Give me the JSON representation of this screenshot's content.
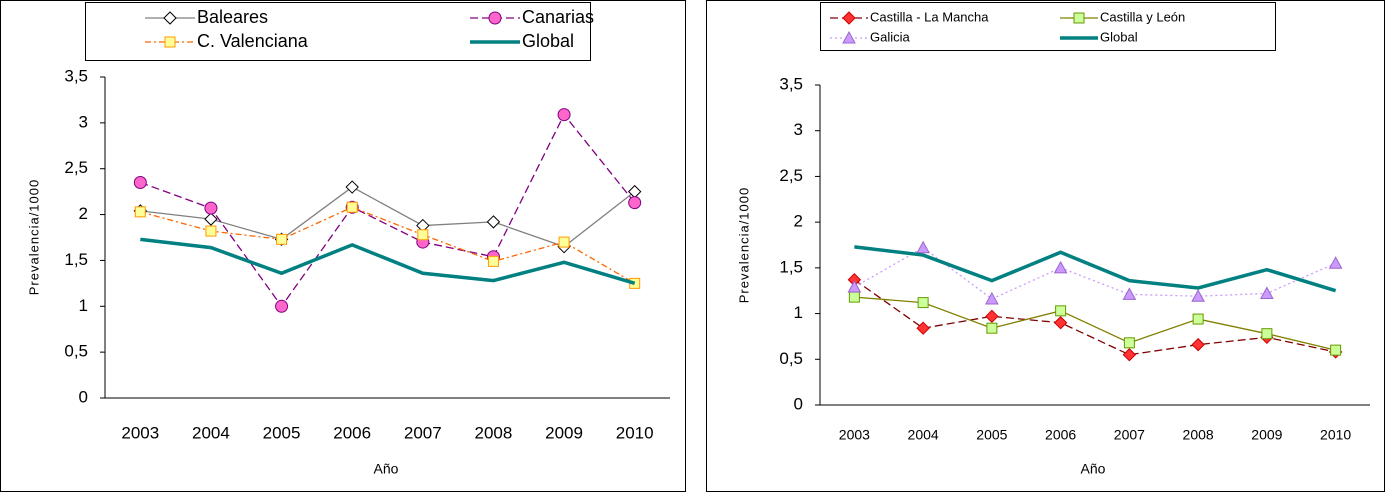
{
  "chart_data": [
    {
      "type": "line",
      "x_label": "Año",
      "y_label": "Prevalencia/1000",
      "categories": [
        "2003",
        "2004",
        "2005",
        "2006",
        "2007",
        "2008",
        "2009",
        "2010"
      ],
      "ylim": [
        0,
        3.5
      ],
      "yticks": [
        0,
        {
          "value": 0.5,
          "label": "0,5"
        },
        1,
        {
          "value": 1.5,
          "label": "1,5"
        },
        2,
        {
          "value": 2.5,
          "label": "2,5"
        },
        3,
        {
          "value": 3.5,
          "label": "3,5"
        }
      ],
      "series": [
        {
          "name": "Baleares",
          "color": "#808080",
          "marker": "diamond",
          "marker_fill": "#ffffff",
          "marker_stroke": "#000000",
          "dash": "solid",
          "values": [
            2.04,
            1.95,
            1.73,
            2.3,
            1.88,
            1.92,
            1.65,
            2.25
          ]
        },
        {
          "name": "Canarias",
          "color": "#800080",
          "marker": "circle",
          "marker_fill": "#ff66cc",
          "marker_stroke": "#800080",
          "dash": "dashed",
          "values": [
            2.35,
            2.07,
            1.0,
            2.08,
            1.7,
            1.54,
            3.09,
            2.13
          ]
        },
        {
          "name": "C. Valenciana",
          "color": "#ff6600",
          "marker": "square",
          "marker_fill": "#ffff99",
          "marker_stroke": "#ff9900",
          "dash": "dashdot",
          "values": [
            2.03,
            1.82,
            1.73,
            2.08,
            1.78,
            1.49,
            1.7,
            1.25
          ]
        },
        {
          "name": "Global",
          "color": "#008080",
          "marker": "none",
          "dash": "solid",
          "values": [
            1.73,
            1.64,
            1.36,
            1.67,
            1.36,
            1.28,
            1.48,
            1.25
          ]
        }
      ]
    },
    {
      "type": "line",
      "x_label": "Año",
      "y_label": "Prevalencia/1000",
      "categories": [
        "2003",
        "2004",
        "2005",
        "2006",
        "2007",
        "2008",
        "2009",
        "2010"
      ],
      "ylim": [
        0,
        3.5
      ],
      "yticks": [
        0,
        {
          "value": 0.5,
          "label": "0,5"
        },
        1,
        {
          "value": 1.5,
          "label": "1,5"
        },
        2,
        {
          "value": 2.5,
          "label": "2,5"
        },
        3,
        {
          "value": 3.5,
          "label": "3,5"
        }
      ],
      "series": [
        {
          "name": "Castilla - La Mancha",
          "color": "#800000",
          "marker": "diamond",
          "marker_fill": "#ff3333",
          "marker_stroke": "#cc0000",
          "dash": "dashed",
          "values": [
            1.37,
            0.84,
            0.97,
            0.9,
            0.55,
            0.66,
            0.74,
            0.58
          ]
        },
        {
          "name": "Castilla y León",
          "color": "#808000",
          "marker": "square",
          "marker_fill": "#ccff99",
          "marker_stroke": "#669900",
          "dash": "solid",
          "values": [
            1.18,
            1.12,
            0.84,
            1.03,
            0.68,
            0.94,
            0.78,
            0.6
          ]
        },
        {
          "name": "Galicia",
          "color": "#cc99ff",
          "marker": "triangle",
          "marker_fill": "#cc99ff",
          "marker_stroke": "#9966cc",
          "dash": "dotted",
          "values": [
            1.29,
            1.72,
            1.16,
            1.5,
            1.21,
            1.19,
            1.22,
            1.55
          ]
        },
        {
          "name": "Global",
          "color": "#008080",
          "marker": "none",
          "dash": "solid",
          "values": [
            1.73,
            1.64,
            1.36,
            1.67,
            1.36,
            1.28,
            1.48,
            1.25
          ]
        }
      ]
    }
  ]
}
